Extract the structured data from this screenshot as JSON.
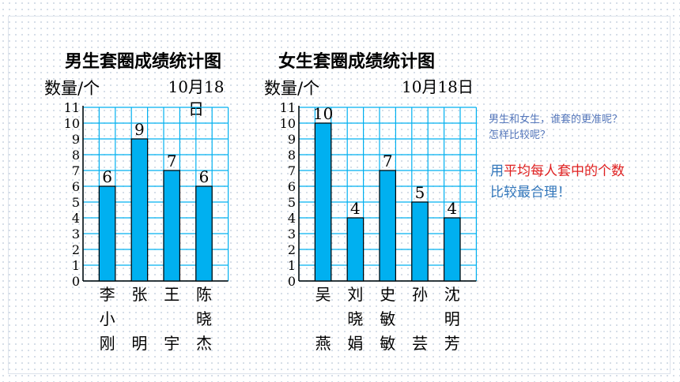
{
  "slide": {
    "colors": {
      "bar": "#00b0f0",
      "grid": "#00b0f0",
      "note": "#3377bb",
      "highlight": "#e02020"
    },
    "note_question": [
      "男生和女生，谁套的更准呢？",
      "怎样比较呢？"
    ],
    "note_answer": {
      "prefix": "用",
      "highlight": "平均每人套中的个数",
      "line2": "比较最合理！"
    }
  },
  "chart_data": [
    {
      "type": "bar",
      "title": "男生套圈成绩统计图",
      "ylabel": "数量/个",
      "date": "10月18日",
      "categories": [
        "李小刚",
        "张明",
        "王宇",
        "陈晓杰"
      ],
      "values": [
        6,
        9,
        7,
        6
      ],
      "ylim": [
        0,
        11
      ],
      "yticks": [
        "0",
        "1",
        "2",
        "3",
        "4",
        "5",
        "6",
        "7",
        "8",
        "9",
        "10",
        "11"
      ],
      "grid": true
    },
    {
      "type": "bar",
      "title": "女生套圈成绩统计图",
      "ylabel": "数量/个",
      "date": "10月18日",
      "categories": [
        "吴燕",
        "刘晓娟",
        "史敏敏",
        "孙芸",
        "沈明芳"
      ],
      "values": [
        10,
        4,
        7,
        5,
        4
      ],
      "ylim": [
        0,
        11
      ],
      "yticks": [
        "0",
        "1",
        "2",
        "3",
        "4",
        "5",
        "6",
        "7",
        "8",
        "9",
        "10",
        "11"
      ],
      "grid": true
    }
  ]
}
